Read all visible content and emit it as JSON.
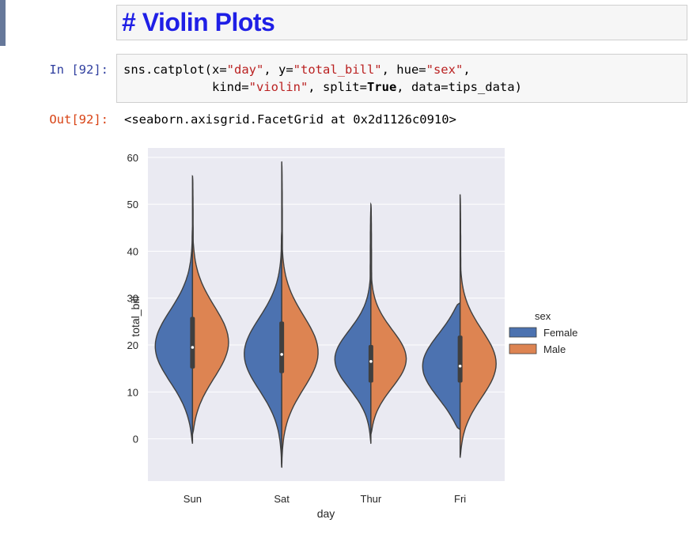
{
  "markdown_cell": {
    "text": "# Violin Plots"
  },
  "code_cell": {
    "in_prompt": "In [92]:",
    "out_prompt": "Out[92]:",
    "code_line1": {
      "p1": "sns.catplot(x=",
      "s1": "\"day\"",
      "p2": ", y=",
      "s2": "\"total_bill\"",
      "p3": ", hue=",
      "s3": "\"sex\"",
      "p4": ","
    },
    "code_line2": {
      "p1": "            kind=",
      "s1": "\"violin\"",
      "p2": ", split=",
      "kw": "True",
      "p3": ", data=tips_data)"
    },
    "output_text": "<seaborn.axisgrid.FacetGrid at 0x2d1126c0910>"
  },
  "chart_data": {
    "type": "violin",
    "split": true,
    "xlabel": "day",
    "ylabel": "total_bill",
    "ylim": [
      -9,
      62
    ],
    "yticks": [
      0,
      10,
      20,
      30,
      40,
      50,
      60
    ],
    "categories": [
      "Sun",
      "Sat",
      "Thur",
      "Fri"
    ],
    "background": "#eaeaf2",
    "legend": {
      "title": "sex",
      "placement": "outside-right",
      "entries": [
        {
          "name": "Female",
          "color": "#4c72b0"
        },
        {
          "name": "Male",
          "color": "#dd8452"
        }
      ]
    },
    "violins": [
      {
        "category": "Sun",
        "female": {
          "min": -1,
          "max": 45,
          "median": 19.5,
          "q1": 15,
          "q3": 26
        },
        "male": {
          "min": 1,
          "max": 56,
          "median": 20,
          "q1": 15,
          "q3": 26
        }
      },
      {
        "category": "Sat",
        "female": {
          "min": -6,
          "max": 44,
          "median": 18,
          "q1": 14,
          "q3": 25
        },
        "male": {
          "min": -6,
          "max": 59,
          "median": 18,
          "q1": 14,
          "q3": 25
        }
      },
      {
        "category": "Thur",
        "female": {
          "min": -1,
          "max": 49,
          "median": 16.5,
          "q1": 12,
          "q3": 20
        },
        "male": {
          "min": 1,
          "max": 50,
          "median": 16.5,
          "q1": 12,
          "q3": 20
        }
      },
      {
        "category": "Fri",
        "female": {
          "min": 2,
          "max": 29,
          "median": 15.5,
          "q1": 12,
          "q3": 22
        },
        "male": {
          "min": -4,
          "max": 52,
          "median": 15.5,
          "q1": 12,
          "q3": 22
        }
      }
    ]
  }
}
